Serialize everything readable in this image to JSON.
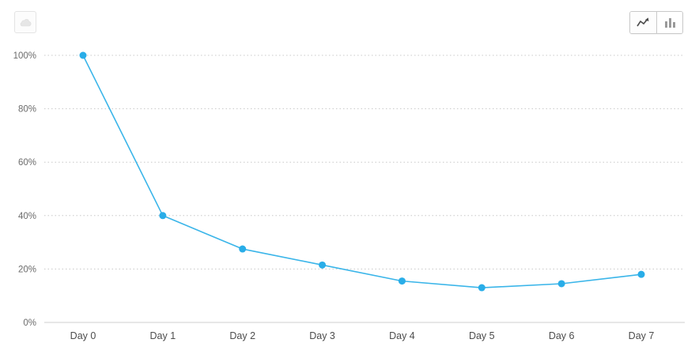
{
  "toolbar": {
    "left_button": {
      "icon": "cloud-icon",
      "state": "disabled"
    },
    "view_toggle": {
      "options": [
        {
          "id": "line",
          "icon": "line-chart-icon",
          "selected": true
        },
        {
          "id": "bar",
          "icon": "bar-chart-icon",
          "selected": false
        }
      ]
    }
  },
  "chart_data": {
    "type": "line",
    "title": "",
    "xlabel": "",
    "ylabel": "",
    "categories": [
      "Day 0",
      "Day 1",
      "Day 2",
      "Day 3",
      "Day 4",
      "Day 5",
      "Day 6",
      "Day 7"
    ],
    "values": [
      100,
      40,
      27.5,
      21.5,
      15.5,
      13,
      14.5,
      18
    ],
    "ylim": [
      0,
      100
    ],
    "y_ticks": [
      {
        "value": 0,
        "label": "0%"
      },
      {
        "value": 20,
        "label": "20%"
      },
      {
        "value": 40,
        "label": "40%"
      },
      {
        "value": 60,
        "label": "60%"
      },
      {
        "value": 80,
        "label": "80%"
      },
      {
        "value": 100,
        "label": "100%"
      }
    ],
    "grid": "dotted-horizontal",
    "legend": "none",
    "line_color": "#3ab5e9",
    "point_color": "#29ade8",
    "grid_color": "#c8c8c8",
    "baseline_color": "#cfcfcf",
    "tick_label_color": "#6b6b6b",
    "x_label_color": "#4d4d4d"
  }
}
